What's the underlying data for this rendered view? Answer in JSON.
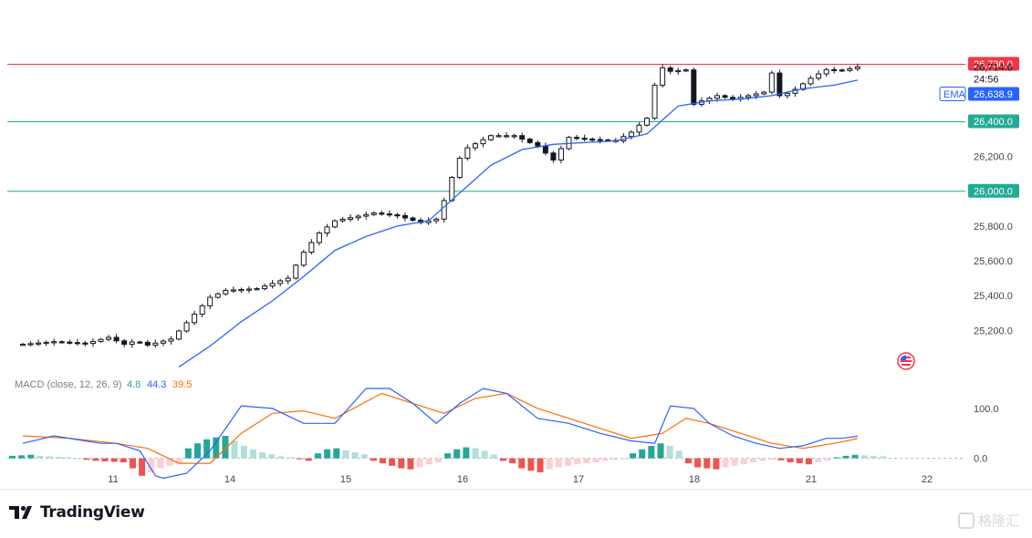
{
  "brand": {
    "name": "TradingView"
  },
  "watermark": {
    "text": "格隆汇"
  },
  "colors": {
    "resistance": "#f23645",
    "support": "#22ab94",
    "ema": "#2962ff",
    "macd_line": "#2962ff",
    "signal_line": "#ff6d00",
    "hist_pos_strong": "#26a69a",
    "hist_pos_weak": "#b2dfdb",
    "hist_neg_strong": "#ef5350",
    "hist_neg_weak": "#ffcdd2",
    "candle": "#131722"
  },
  "icons": {
    "flag": "us-flag-icon",
    "brand_logo": "tradingview-logo-icon"
  },
  "chart_data": [
    {
      "type": "candlestick",
      "ylim": [
        24950,
        27100
      ],
      "y_ticks": [
        "25,200.0",
        "25,400.0",
        "25,600.0",
        "25,800.0",
        "26,200.0"
      ],
      "x_ticks": [
        "11",
        "14",
        "15",
        "16",
        "17",
        "18",
        "21",
        "22"
      ],
      "horizontal_lines": [
        {
          "value": 26730,
          "label": "26,730.0",
          "color": "#f23645"
        },
        {
          "value": 26400,
          "label": "26,400.0",
          "color": "#22ab94"
        },
        {
          "value": 26000,
          "label": "26,000.0",
          "color": "#22ab94"
        }
      ],
      "last_price": {
        "value": 26714.6,
        "label": "26,714.6",
        "countdown": "24:56"
      },
      "ema": {
        "name": "EMA",
        "label": "26,638.9",
        "value": 26638.9
      },
      "close_path": [
        [
          0,
          25120
        ],
        [
          4,
          25135
        ],
        [
          8,
          25125
        ],
        [
          11,
          25160
        ],
        [
          13,
          25120
        ],
        [
          14.5,
          25140
        ],
        [
          16,
          25115
        ],
        [
          19,
          25150
        ],
        [
          20.5,
          25220
        ],
        [
          24,
          25390
        ],
        [
          26,
          25430
        ],
        [
          30,
          25440
        ],
        [
          33,
          25485
        ],
        [
          34,
          25500
        ],
        [
          36,
          25650
        ],
        [
          38,
          25760
        ],
        [
          40,
          25830
        ],
        [
          45,
          25875
        ],
        [
          48,
          25860
        ],
        [
          51,
          25820
        ],
        [
          53,
          25840
        ],
        [
          54.5,
          26000
        ],
        [
          55.5,
          26160
        ],
        [
          57,
          26250
        ],
        [
          60,
          26320
        ],
        [
          63,
          26320
        ],
        [
          66,
          26260
        ],
        [
          68,
          26180
        ],
        [
          70,
          26310
        ],
        [
          72,
          26300
        ],
        [
          76,
          26290
        ],
        [
          78,
          26340
        ],
        [
          80,
          26420
        ],
        [
          81,
          26610
        ],
        [
          82,
          26710
        ],
        [
          83,
          26690
        ],
        [
          85.5,
          26700
        ],
        [
          86,
          26500
        ],
        [
          87,
          26520
        ],
        [
          89,
          26550
        ],
        [
          91,
          26530
        ],
        [
          95,
          26570
        ],
        [
          96,
          26680
        ],
        [
          97,
          26550
        ],
        [
          98.5,
          26570
        ],
        [
          101,
          26650
        ],
        [
          103,
          26700
        ],
        [
          105,
          26695
        ],
        [
          107,
          26715
        ]
      ],
      "ema_path": [
        [
          20,
          24990
        ],
        [
          24,
          25110
        ],
        [
          28,
          25250
        ],
        [
          32,
          25370
        ],
        [
          36,
          25510
        ],
        [
          40,
          25660
        ],
        [
          44,
          25740
        ],
        [
          48,
          25800
        ],
        [
          52,
          25830
        ],
        [
          56,
          25990
        ],
        [
          60,
          26150
        ],
        [
          64,
          26240
        ],
        [
          68,
          26270
        ],
        [
          72,
          26280
        ],
        [
          76,
          26290
        ],
        [
          80,
          26330
        ],
        [
          84,
          26490
        ],
        [
          88,
          26520
        ],
        [
          92,
          26530
        ],
        [
          96,
          26550
        ],
        [
          100,
          26590
        ],
        [
          104,
          26610
        ],
        [
          107,
          26639
        ]
      ]
    },
    {
      "type": "macd",
      "name": "MACD (close, 12, 26, 9)",
      "values_label": [
        "4.8",
        "44.3",
        "39.5"
      ],
      "ylim": [
        -50,
        160
      ],
      "y_ticks": [
        "100.0",
        "0.0"
      ],
      "macd_path": [
        [
          0,
          30
        ],
        [
          4,
          45
        ],
        [
          8,
          35
        ],
        [
          10,
          30
        ],
        [
          12,
          30
        ],
        [
          15,
          15
        ],
        [
          17,
          -35
        ],
        [
          18,
          -40
        ],
        [
          21,
          -30
        ],
        [
          24,
          15
        ],
        [
          28,
          105
        ],
        [
          32,
          100
        ],
        [
          36,
          70
        ],
        [
          40,
          70
        ],
        [
          44,
          140
        ],
        [
          47,
          140
        ],
        [
          50,
          110
        ],
        [
          53,
          70
        ],
        [
          56,
          110
        ],
        [
          59,
          140
        ],
        [
          62,
          130
        ],
        [
          66,
          80
        ],
        [
          70,
          70
        ],
        [
          74,
          50
        ],
        [
          78,
          35
        ],
        [
          81,
          30
        ],
        [
          83,
          105
        ],
        [
          86,
          100
        ],
        [
          88,
          70
        ],
        [
          91,
          45
        ],
        [
          94,
          30
        ],
        [
          97,
          20
        ],
        [
          100,
          25
        ],
        [
          103,
          40
        ],
        [
          105,
          40
        ],
        [
          107,
          44.3
        ]
      ],
      "signal_path": [
        [
          0,
          45
        ],
        [
          6,
          40
        ],
        [
          12,
          30
        ],
        [
          16,
          20
        ],
        [
          20,
          -10
        ],
        [
          24,
          -10
        ],
        [
          28,
          50
        ],
        [
          32,
          90
        ],
        [
          36,
          95
        ],
        [
          40,
          80
        ],
        [
          46,
          130
        ],
        [
          50,
          110
        ],
        [
          54,
          90
        ],
        [
          58,
          120
        ],
        [
          62,
          130
        ],
        [
          66,
          100
        ],
        [
          70,
          80
        ],
        [
          74,
          60
        ],
        [
          78,
          40
        ],
        [
          82,
          50
        ],
        [
          85,
          80
        ],
        [
          88,
          70
        ],
        [
          92,
          50
        ],
        [
          96,
          30
        ],
        [
          100,
          20
        ],
        [
          104,
          30
        ],
        [
          107,
          39.5
        ]
      ],
      "histogram": [
        [
          0,
          5
        ],
        [
          1,
          6
        ],
        [
          2,
          7
        ],
        [
          3,
          5
        ],
        [
          4,
          4
        ],
        [
          5,
          3
        ],
        [
          6,
          2
        ],
        [
          7,
          0
        ],
        [
          8,
          -3
        ],
        [
          9,
          -5
        ],
        [
          10,
          -6
        ],
        [
          11,
          -7
        ],
        [
          12,
          -8
        ],
        [
          13,
          -20
        ],
        [
          14,
          -35
        ],
        [
          15,
          -28
        ],
        [
          16,
          -20
        ],
        [
          17,
          -15
        ],
        [
          18,
          -10
        ],
        [
          19,
          20
        ],
        [
          20,
          30
        ],
        [
          21,
          38
        ],
        [
          22,
          42
        ],
        [
          23,
          45
        ],
        [
          24,
          35
        ],
        [
          25,
          25
        ],
        [
          26,
          18
        ],
        [
          27,
          12
        ],
        [
          28,
          8
        ],
        [
          29,
          4
        ],
        [
          30,
          2
        ],
        [
          31,
          -2
        ],
        [
          32,
          -5
        ],
        [
          33,
          10
        ],
        [
          34,
          18
        ],
        [
          35,
          20
        ],
        [
          36,
          16
        ],
        [
          37,
          12
        ],
        [
          38,
          8
        ],
        [
          39,
          -5
        ],
        [
          40,
          -10
        ],
        [
          41,
          -15
        ],
        [
          42,
          -20
        ],
        [
          43,
          -22
        ],
        [
          44,
          -18
        ],
        [
          45,
          -12
        ],
        [
          46,
          -8
        ],
        [
          47,
          10
        ],
        [
          48,
          18
        ],
        [
          49,
          22
        ],
        [
          50,
          20
        ],
        [
          51,
          15
        ],
        [
          52,
          8
        ],
        [
          53,
          -5
        ],
        [
          54,
          -10
        ],
        [
          55,
          -20
        ],
        [
          56,
          -25
        ],
        [
          57,
          -28
        ],
        [
          58,
          -22
        ],
        [
          59,
          -18
        ],
        [
          60,
          -15
        ],
        [
          61,
          -12
        ],
        [
          62,
          -10
        ],
        [
          63,
          -8
        ],
        [
          64,
          -5
        ],
        [
          65,
          -3
        ],
        [
          66,
          -2
        ],
        [
          67,
          10
        ],
        [
          68,
          18
        ],
        [
          69,
          25
        ],
        [
          70,
          30
        ],
        [
          71,
          25
        ],
        [
          72,
          15
        ],
        [
          73,
          -10
        ],
        [
          74,
          -18
        ],
        [
          75,
          -20
        ],
        [
          76,
          -22
        ],
        [
          77,
          -18
        ],
        [
          78,
          -15
        ],
        [
          79,
          -12
        ],
        [
          80,
          -8
        ],
        [
          81,
          -5
        ],
        [
          82,
          -3
        ],
        [
          83,
          -4
        ],
        [
          84,
          -8
        ],
        [
          85,
          -10
        ],
        [
          86,
          -12
        ],
        [
          87,
          -8
        ],
        [
          88,
          -5
        ],
        [
          89,
          2
        ],
        [
          90,
          5
        ],
        [
          91,
          7
        ],
        [
          92,
          6
        ],
        [
          93,
          5
        ],
        [
          94,
          4
        ]
      ]
    }
  ]
}
